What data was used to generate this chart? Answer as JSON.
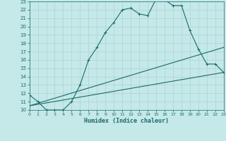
{
  "xlabel": "Humidex (Indice chaleur)",
  "xlim": [
    0,
    23
  ],
  "ylim": [
    10,
    23
  ],
  "yticks": [
    10,
    11,
    12,
    13,
    14,
    15,
    16,
    17,
    18,
    19,
    20,
    21,
    22,
    23
  ],
  "xticks": [
    0,
    1,
    2,
    3,
    4,
    5,
    6,
    7,
    8,
    9,
    10,
    11,
    12,
    13,
    14,
    15,
    16,
    17,
    18,
    19,
    20,
    21,
    22,
    23
  ],
  "bg_color": "#c5e8e8",
  "grid_color": "#aad4d4",
  "line_color": "#1a6b6b",
  "line1_x": [
    0,
    1,
    2,
    3,
    4,
    5,
    6,
    7,
    8,
    9,
    10,
    11,
    12,
    13,
    14,
    15,
    16,
    17,
    18,
    19,
    20,
    21,
    22,
    23
  ],
  "line1_y": [
    11.8,
    11.0,
    10.0,
    10.0,
    10.0,
    11.0,
    13.0,
    16.0,
    17.5,
    19.3,
    20.5,
    22.0,
    22.2,
    21.5,
    21.3,
    23.3,
    23.2,
    22.5,
    22.5,
    19.5,
    17.3,
    15.5,
    15.5,
    14.5
  ],
  "line2_x": [
    0,
    23
  ],
  "line2_y": [
    10.5,
    17.5
  ],
  "line3_x": [
    0,
    23
  ],
  "line3_y": [
    10.5,
    14.5
  ],
  "linewidth": 0.8,
  "marker_size": 3.0
}
